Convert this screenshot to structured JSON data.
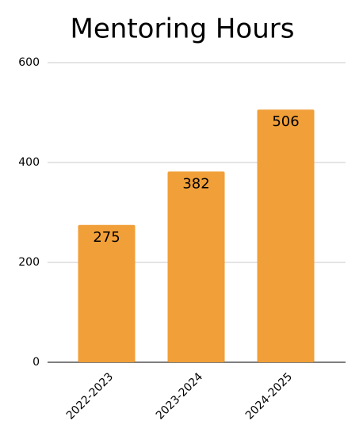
{
  "chart_data": {
    "type": "bar",
    "title": "Mentoring Hours",
    "categories": [
      "2022-2023",
      "2023-2024",
      "2024-2025"
    ],
    "values": [
      275,
      382,
      506
    ],
    "color": "#f19f38",
    "ylim": [
      0,
      600
    ],
    "yticks": [
      0,
      200,
      400,
      600
    ],
    "grid": true
  }
}
